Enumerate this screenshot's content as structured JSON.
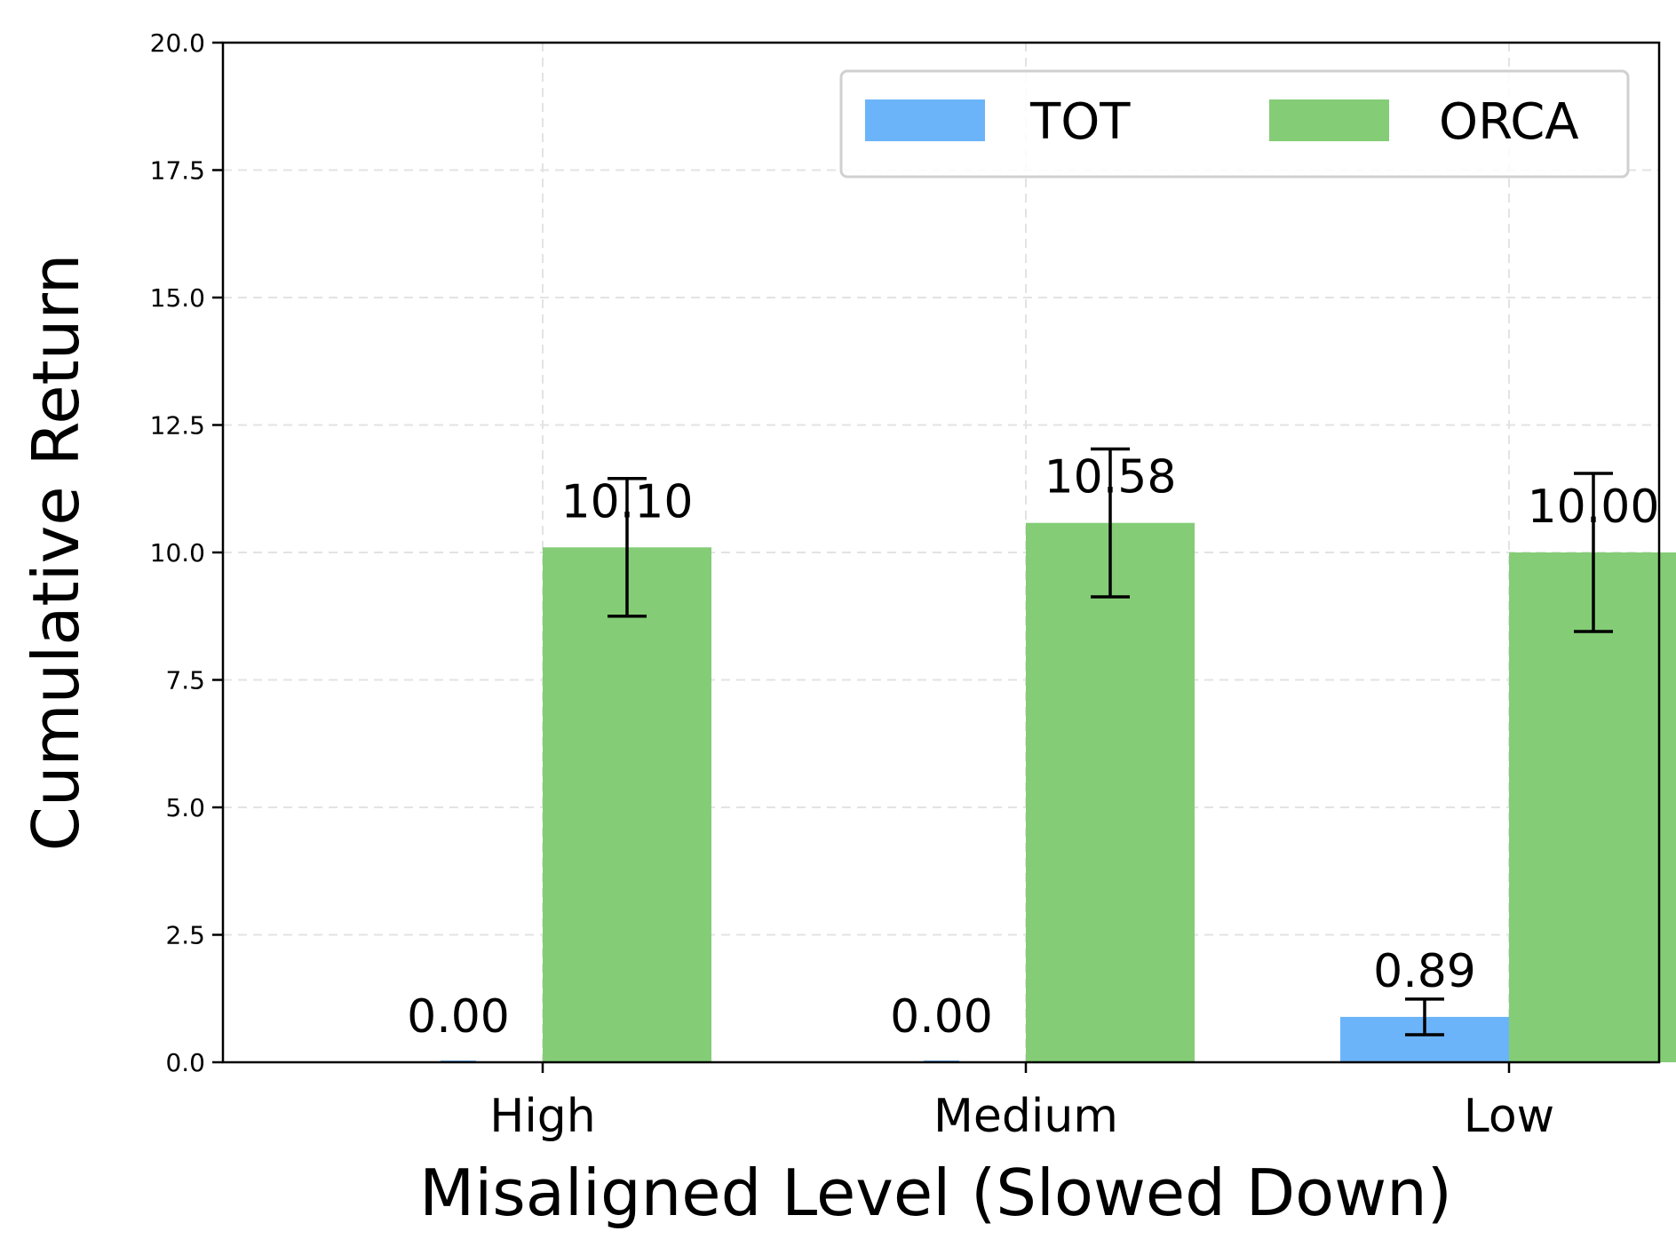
{
  "chart_data": {
    "type": "bar",
    "title": "",
    "xlabel": "Misaligned Level (Slowed Down)",
    "ylabel": "Cumulative Return",
    "categories": [
      "High",
      "Medium",
      "Low"
    ],
    "ylim": [
      0,
      20
    ],
    "yticks": [
      "0.0",
      "2.5",
      "5.0",
      "7.5",
      "10.0",
      "12.5",
      "15.0",
      "17.5",
      "20.0"
    ],
    "grid": true,
    "legend_position": "top-right",
    "series": [
      {
        "name": "TOT",
        "color": "#6cb4fa",
        "values": [
          0.0,
          0.0,
          0.89
        ],
        "errors": [
          null,
          null,
          0.35
        ],
        "labels": [
          "0.00",
          "0.00",
          "0.89"
        ]
      },
      {
        "name": "ORCA",
        "color": "#84cd76",
        "values": [
          10.1,
          10.58,
          10.0
        ],
        "errors": [
          1.35,
          1.45,
          1.55
        ],
        "labels": [
          "10.10",
          "10.58",
          "10.00"
        ]
      }
    ]
  }
}
